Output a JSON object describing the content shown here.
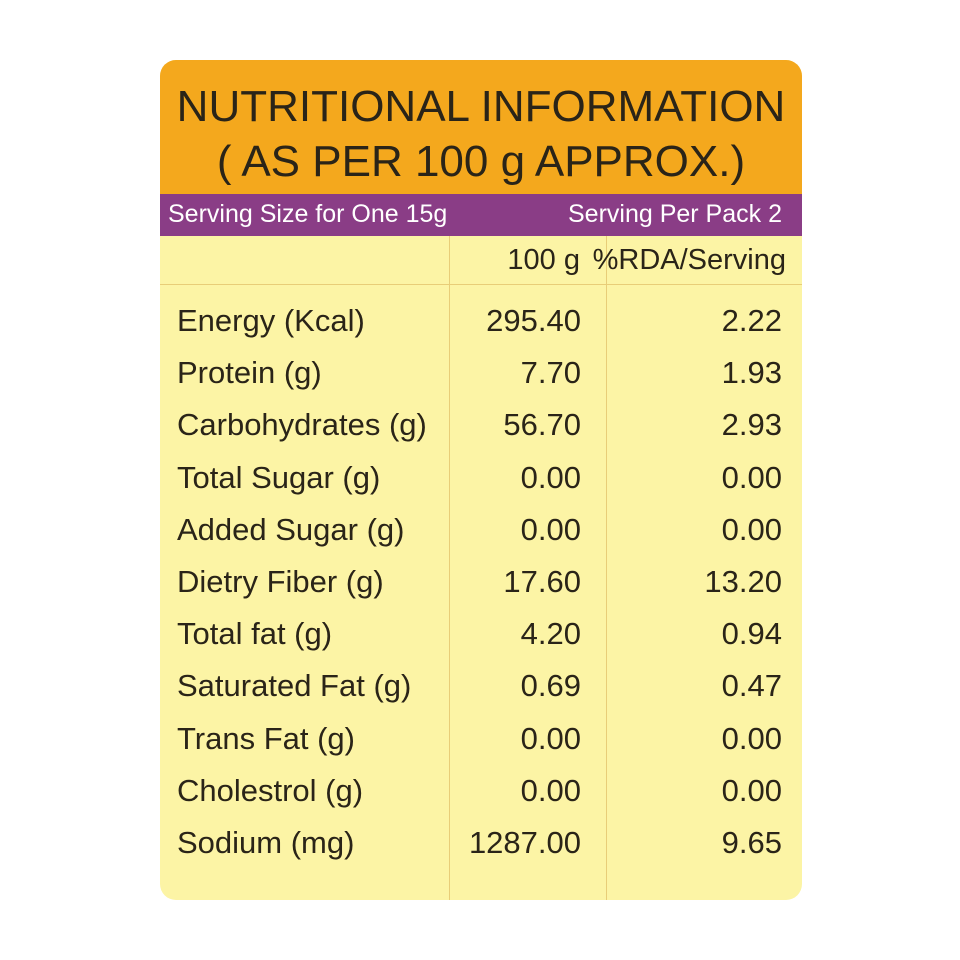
{
  "header": {
    "title_line1": "NUTRITIONAL INFORMATION",
    "title_line2": "( AS PER 100 g APPROX.)"
  },
  "serving": {
    "size": "Serving Size for One 15g",
    "per_pack": "Serving Per Pack 2"
  },
  "columns": {
    "per100": "100 g",
    "rda": "%RDA/Serving"
  },
  "rows": [
    {
      "name": "Energy (Kcal)",
      "per100": "295.40",
      "rda": "2.22"
    },
    {
      "name": "Protein (g)",
      "per100": "7.70",
      "rda": "1.93"
    },
    {
      "name": "Carbohydrates (g)",
      "per100": "56.70",
      "rda": "2.93"
    },
    {
      "name": "Total Sugar (g)",
      "per100": "0.00",
      "rda": "0.00"
    },
    {
      "name": "Added Sugar (g)",
      "per100": "0.00",
      "rda": "0.00"
    },
    {
      "name": "Dietry Fiber (g)",
      "per100": "17.60",
      "rda": "13.20"
    },
    {
      "name": "Total fat (g)",
      "per100": "4.20",
      "rda": "0.94"
    },
    {
      "name": "Saturated Fat (g)",
      "per100": "0.69",
      "rda": "0.47"
    },
    {
      "name": "Trans Fat (g)",
      "per100": "0.00",
      "rda": "0.00"
    },
    {
      "name": "Cholestrol (g)",
      "per100": "0.00",
      "rda": "0.00"
    },
    {
      "name": "Sodium (mg)",
      "per100": "1287.00",
      "rda": "9.65"
    }
  ],
  "colors": {
    "header_bg": "#f4a81d",
    "serving_bar_bg": "#8a3d86",
    "panel_bg": "#fcf4a5",
    "text": "#2a2418"
  }
}
